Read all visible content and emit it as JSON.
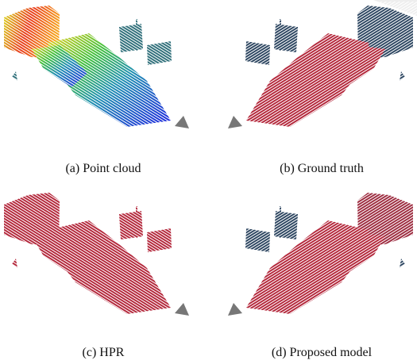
{
  "figure": {
    "captions": [
      "(a) Point cloud",
      "(b) Ground truth",
      "(c) HPR",
      "(d) Proposed model"
    ]
  }
}
